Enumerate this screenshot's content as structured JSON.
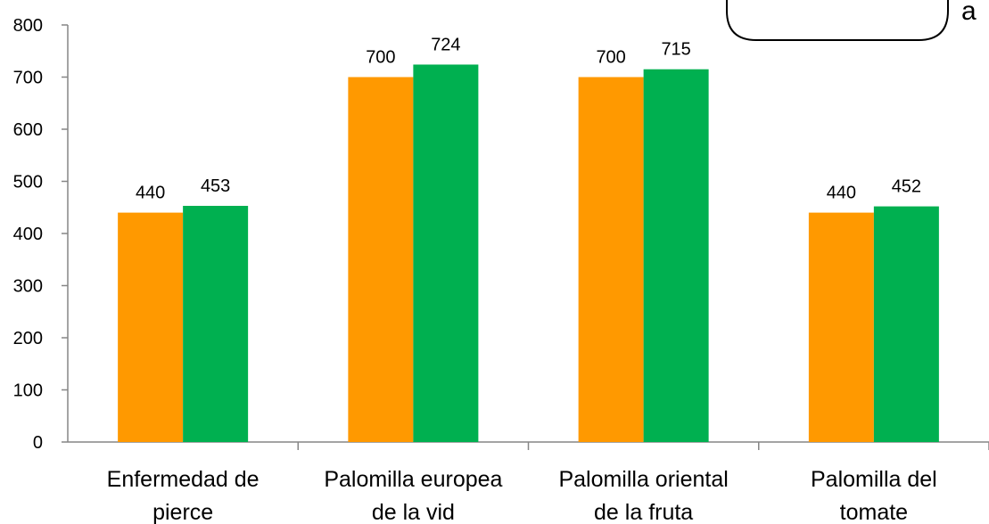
{
  "chart_data": {
    "type": "bar",
    "categories": [
      [
        "Enfermedad de",
        "pierce"
      ],
      [
        "Palomilla europea",
        "de la vid"
      ],
      [
        "Palomilla oriental",
        "de la fruta"
      ],
      [
        "Palomilla del",
        "tomate"
      ]
    ],
    "series": [
      {
        "values": [
          440,
          700,
          700,
          440
        ],
        "color": "#FF9900"
      },
      {
        "values": [
          453,
          724,
          715,
          452
        ],
        "color": "#00B050"
      }
    ],
    "ylim": [
      0,
      800
    ],
    "yticks": [
      0,
      100,
      200,
      300,
      400,
      500,
      600,
      700,
      800
    ],
    "data_labels": true,
    "grid": false,
    "legend": "none"
  },
  "overlay": {
    "box_text": "",
    "corner_text": "a"
  }
}
